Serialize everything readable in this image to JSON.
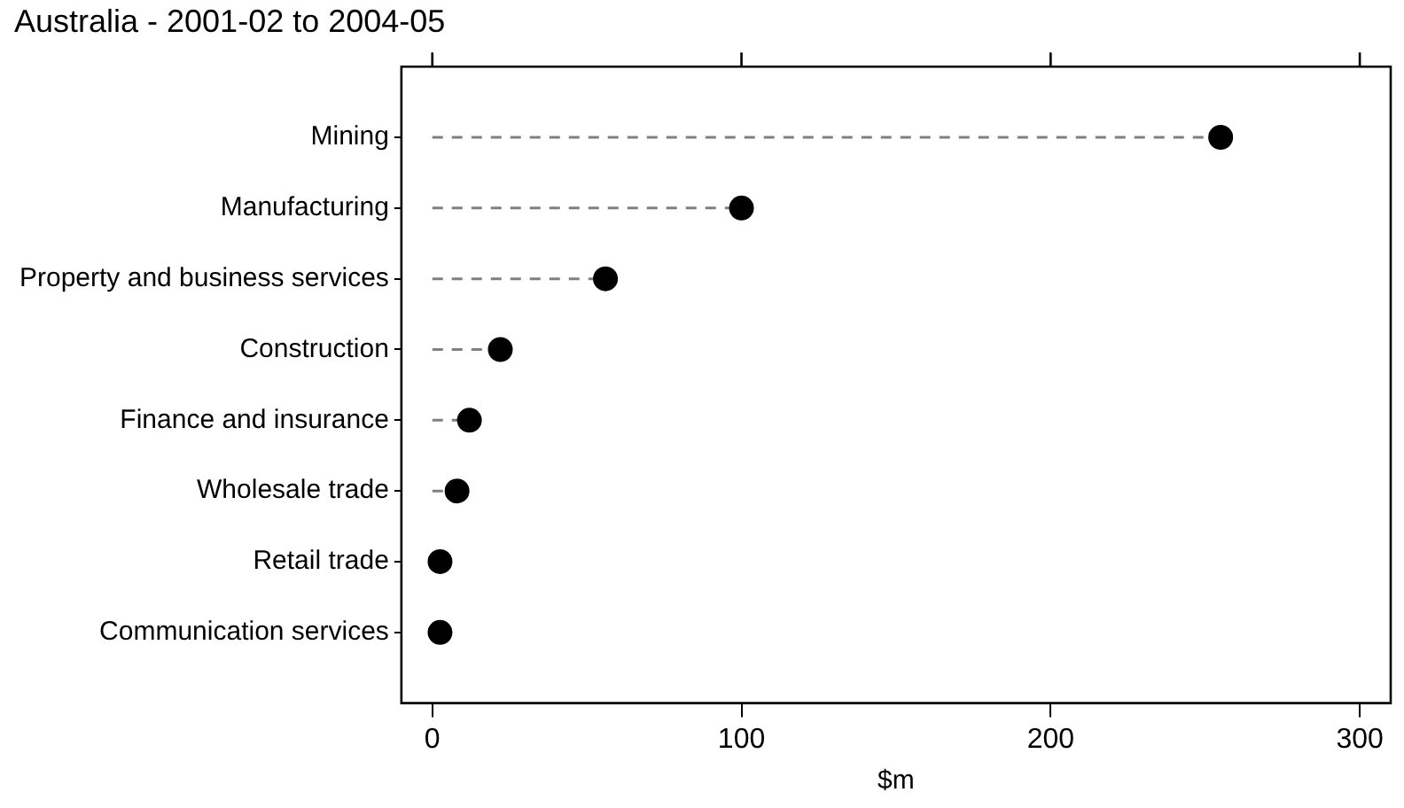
{
  "chart_data": {
    "type": "lollipop",
    "title": "Australia - 2001-02 to 2004-05",
    "xlabel": "$m",
    "categories": [
      "Mining",
      "Manufacturing",
      "Property and business services",
      "Construction",
      "Finance and insurance",
      "Wholesale trade",
      "Retail trade",
      "Communication services"
    ],
    "values": [
      255,
      100,
      56,
      22,
      12,
      8,
      2.5,
      2.5
    ],
    "color": "#000000",
    "orientation": "horizontal",
    "marker": "circle",
    "line_style": "dashed",
    "grid": false,
    "legend": false,
    "xlim": [
      -10,
      310
    ],
    "xticks": [
      0,
      100,
      200,
      300
    ]
  }
}
